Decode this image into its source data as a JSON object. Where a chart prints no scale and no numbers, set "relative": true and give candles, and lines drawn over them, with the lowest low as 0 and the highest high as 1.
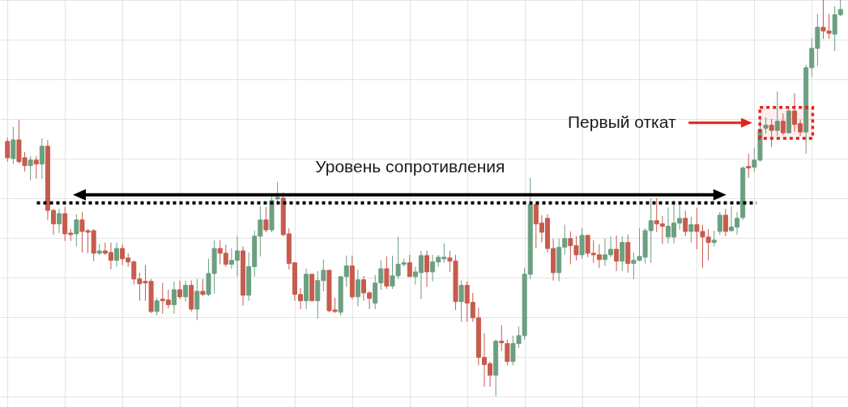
{
  "chart_data": {
    "type": "candlestick",
    "relative": true,
    "grid": true,
    "categories": [
      null,
      null,
      null,
      null,
      null,
      null,
      null,
      null,
      null,
      null,
      null,
      null,
      null,
      null,
      null,
      null,
      null,
      null,
      null,
      null,
      null,
      null,
      null,
      null,
      null,
      null,
      null,
      null,
      null,
      null,
      null,
      null,
      null,
      null,
      null,
      null,
      null,
      null,
      null,
      null,
      null,
      null,
      null,
      null,
      null,
      null,
      null,
      null,
      null,
      null,
      null,
      null,
      null,
      null,
      null,
      null,
      null,
      null,
      null,
      null,
      null,
      null,
      null,
      null,
      null,
      null,
      null,
      null,
      null,
      null,
      null,
      null,
      null,
      null,
      null,
      null,
      null,
      null,
      null,
      null,
      null,
      null,
      null,
      null,
      null,
      null,
      null,
      null,
      null,
      null,
      null,
      null,
      null,
      null,
      null,
      null,
      null,
      null,
      null,
      null,
      null,
      null,
      null,
      null,
      null,
      null,
      null,
      null,
      null,
      null,
      null,
      null,
      null,
      null,
      null,
      null,
      null,
      null,
      null,
      null,
      null,
      null,
      null,
      null,
      null,
      null,
      null,
      null,
      null,
      null,
      null,
      null,
      null,
      null,
      null,
      null,
      null,
      null,
      null,
      null,
      null,
      null,
      null,
      null,
      null,
      null
    ],
    "ohlc": [
      [
        0.643,
        0.653,
        0.592,
        0.602
      ],
      [
        0.6,
        0.68,
        0.586,
        0.647
      ],
      [
        0.647,
        0.698,
        0.588,
        0.592
      ],
      [
        0.602,
        0.616,
        0.567,
        0.582
      ],
      [
        0.582,
        0.606,
        0.545,
        0.596
      ],
      [
        0.596,
        0.606,
        0.549,
        0.586
      ],
      [
        0.586,
        0.651,
        0.549,
        0.631
      ],
      [
        0.631,
        0.647,
        0.445,
        0.469
      ],
      [
        0.469,
        0.473,
        0.408,
        0.435
      ],
      [
        0.435,
        0.473,
        0.412,
        0.461
      ],
      [
        0.461,
        0.478,
        0.392,
        0.41
      ],
      [
        0.412,
        0.422,
        0.392,
        0.408
      ],
      [
        0.41,
        0.459,
        0.378,
        0.445
      ],
      [
        0.445,
        0.465,
        0.363,
        0.416
      ],
      [
        0.418,
        0.422,
        0.361,
        0.414
      ],
      [
        0.418,
        0.422,
        0.341,
        0.361
      ],
      [
        0.361,
        0.384,
        0.357,
        0.367
      ],
      [
        0.367,
        0.388,
        0.357,
        0.361
      ],
      [
        0.363,
        0.388,
        0.32,
        0.343
      ],
      [
        0.343,
        0.388,
        0.327,
        0.373
      ],
      [
        0.373,
        0.384,
        0.331,
        0.347
      ],
      [
        0.349,
        0.361,
        0.327,
        0.339
      ],
      [
        0.339,
        0.343,
        0.282,
        0.296
      ],
      [
        0.296,
        0.312,
        0.241,
        0.284
      ],
      [
        0.29,
        0.331,
        0.241,
        0.286
      ],
      [
        0.29,
        0.296,
        0.21,
        0.214
      ],
      [
        0.214,
        0.249,
        0.204,
        0.241
      ],
      [
        0.245,
        0.286,
        0.208,
        0.241
      ],
      [
        0.243,
        0.269,
        0.222,
        0.231
      ],
      [
        0.231,
        0.29,
        0.208,
        0.269
      ],
      [
        0.269,
        0.292,
        0.245,
        0.251
      ],
      [
        0.251,
        0.292,
        0.239,
        0.28
      ],
      [
        0.28,
        0.292,
        0.214,
        0.22
      ],
      [
        0.22,
        0.296,
        0.192,
        0.265
      ],
      [
        0.265,
        0.296,
        0.253,
        0.257
      ],
      [
        0.257,
        0.347,
        0.253,
        0.31
      ],
      [
        0.31,
        0.394,
        0.259,
        0.373
      ],
      [
        0.373,
        0.394,
        0.333,
        0.361
      ],
      [
        0.361,
        0.382,
        0.327,
        0.333
      ],
      [
        0.333,
        0.373,
        0.322,
        0.343
      ],
      [
        0.343,
        0.404,
        0.302,
        0.367
      ],
      [
        0.367,
        0.378,
        0.229,
        0.255
      ],
      [
        0.255,
        0.363,
        0.241,
        0.327
      ],
      [
        0.327,
        0.418,
        0.302,
        0.404
      ],
      [
        0.404,
        0.48,
        0.353,
        0.445
      ],
      [
        0.445,
        0.478,
        0.414,
        0.42
      ],
      [
        0.42,
        0.51,
        0.414,
        0.494
      ],
      [
        0.498,
        0.541,
        0.49,
        0.502
      ],
      [
        0.5,
        0.514,
        0.404,
        0.408
      ],
      [
        0.41,
        0.424,
        0.32,
        0.335
      ],
      [
        0.337,
        0.337,
        0.241,
        0.257
      ],
      [
        0.257,
        0.273,
        0.22,
        0.241
      ],
      [
        0.241,
        0.322,
        0.22,
        0.308
      ],
      [
        0.308,
        0.308,
        0.241,
        0.241
      ],
      [
        0.241,
        0.316,
        0.196,
        0.292
      ],
      [
        0.292,
        0.345,
        0.265,
        0.318
      ],
      [
        0.318,
        0.318,
        0.212,
        0.216
      ],
      [
        0.218,
        0.249,
        0.21,
        0.214
      ],
      [
        0.212,
        0.302,
        0.204,
        0.302
      ],
      [
        0.302,
        0.355,
        0.276,
        0.329
      ],
      [
        0.329,
        0.355,
        0.245,
        0.251
      ],
      [
        0.251,
        0.32,
        0.227,
        0.294
      ],
      [
        0.294,
        0.304,
        0.241,
        0.261
      ],
      [
        0.261,
        0.265,
        0.22,
        0.247
      ],
      [
        0.235,
        0.306,
        0.22,
        0.286
      ],
      [
        0.286,
        0.343,
        0.269,
        0.322
      ],
      [
        0.322,
        0.353,
        0.271,
        0.278
      ],
      [
        0.278,
        0.355,
        0.271,
        0.304
      ],
      [
        0.304,
        0.402,
        0.296,
        0.333
      ],
      [
        0.333,
        0.347,
        0.327,
        0.337
      ],
      [
        0.337,
        0.357,
        0.302,
        0.302
      ],
      [
        0.302,
        0.327,
        0.282,
        0.314
      ],
      [
        0.312,
        0.367,
        0.245,
        0.355
      ],
      [
        0.355,
        0.367,
        0.276,
        0.314
      ],
      [
        0.314,
        0.357,
        0.29,
        0.339
      ],
      [
        0.339,
        0.357,
        0.327,
        0.351
      ],
      [
        0.347,
        0.386,
        0.337,
        0.351
      ],
      [
        0.349,
        0.367,
        0.314,
        0.341
      ],
      [
        0.341,
        0.357,
        0.218,
        0.239
      ],
      [
        0.239,
        0.292,
        0.188,
        0.28
      ],
      [
        0.28,
        0.29,
        0.188,
        0.235
      ],
      [
        0.237,
        0.261,
        0.188,
        0.198
      ],
      [
        0.198,
        0.224,
        0.078,
        0.098
      ],
      [
        0.098,
        0.159,
        0.024,
        0.08
      ],
      [
        0.082,
        0.088,
        0.024,
        0.053
      ],
      [
        0.053,
        0.143,
        0,
        0.139
      ],
      [
        0.139,
        0.18,
        0.114,
        0.135
      ],
      [
        0.133,
        0.143,
        0.078,
        0.088
      ],
      [
        0.088,
        0.153,
        0.078,
        0.133
      ],
      [
        0.133,
        0.176,
        0.122,
        0.153
      ],
      [
        0.153,
        0.324,
        0.143,
        0.308
      ],
      [
        0.308,
        0.551,
        0.296,
        0.484
      ],
      [
        0.484,
        0.49,
        0.373,
        0.435
      ],
      [
        0.437,
        0.457,
        0.388,
        0.414
      ],
      [
        0.449,
        0.459,
        0.363,
        0.373
      ],
      [
        0.373,
        0.398,
        0.292,
        0.312
      ],
      [
        0.312,
        0.398,
        0.29,
        0.376
      ],
      [
        0.376,
        0.433,
        0.357,
        0.398
      ],
      [
        0.398,
        0.416,
        0.333,
        0.38
      ],
      [
        0.38,
        0.404,
        0.343,
        0.357
      ],
      [
        0.357,
        0.424,
        0.347,
        0.406
      ],
      [
        0.406,
        0.406,
        0.351,
        0.361
      ],
      [
        0.361,
        0.394,
        0.337,
        0.357
      ],
      [
        0.357,
        0.384,
        0.324,
        0.345
      ],
      [
        0.345,
        0.398,
        0.329,
        0.357
      ],
      [
        0.357,
        0.404,
        0.351,
        0.371
      ],
      [
        0.371,
        0.406,
        0.316,
        0.341
      ],
      [
        0.341,
        0.404,
        0.316,
        0.388
      ],
      [
        0.388,
        0.408,
        0.312,
        0.335
      ],
      [
        0.335,
        0.363,
        0.296,
        0.343
      ],
      [
        0.343,
        0.424,
        0.341,
        0.353
      ],
      [
        0.351,
        0.424,
        0.335,
        0.418
      ],
      [
        0.418,
        0.5,
        0.337,
        0.443
      ],
      [
        0.443,
        0.5,
        0.414,
        0.435
      ],
      [
        0.435,
        0.455,
        0.384,
        0.429
      ],
      [
        0.402,
        0.476,
        0.386,
        0.429
      ],
      [
        0.402,
        0.494,
        0.386,
        0.437
      ],
      [
        0.437,
        0.484,
        0.42,
        0.449
      ],
      [
        0.449,
        0.469,
        0.404,
        0.416
      ],
      [
        0.416,
        0.453,
        0.388,
        0.433
      ],
      [
        0.433,
        0.476,
        0.371,
        0.416
      ],
      [
        0.416,
        0.433,
        0.324,
        0.402
      ],
      [
        0.402,
        0.422,
        0.343,
        0.388
      ],
      [
        0.388,
        0.418,
        0.378,
        0.394
      ],
      [
        0.416,
        0.465,
        0.408,
        0.457
      ],
      [
        0.457,
        0.473,
        0.404,
        0.416
      ],
      [
        0.418,
        0.48,
        0.416,
        0.427
      ],
      [
        0.427,
        0.465,
        0.408,
        0.449
      ],
      [
        0.451,
        0.58,
        0.445,
        0.576
      ],
      [
        0.58,
        0.612,
        0.551,
        0.576
      ],
      [
        0.578,
        0.627,
        0.567,
        0.596
      ],
      [
        0.596,
        0.704,
        0.592,
        0.673
      ],
      [
        0.676,
        0.704,
        0.663,
        0.684
      ],
      [
        0.684,
        0.7,
        0.629,
        0.671
      ],
      [
        0.671,
        0.769,
        0.657,
        0.694
      ],
      [
        0.694,
        0.714,
        0.659,
        0.665
      ],
      [
        0.665,
        0.731,
        0.663,
        0.72
      ],
      [
        0.72,
        0.765,
        0.667,
        0.686
      ],
      [
        0.688,
        0.698,
        0.657,
        0.667
      ],
      [
        0.667,
        0.837,
        0.612,
        0.829
      ],
      [
        0.829,
        0.904,
        0.806,
        0.878
      ],
      [
        0.878,
        0.965,
        0.833,
        0.931
      ],
      [
        0.931,
        1,
        0.902,
        0.922
      ],
      [
        0.922,
        0.965,
        0.902,
        0.916
      ],
      [
        0.914,
        0.984,
        0.871,
        0.963
      ],
      [
        0.963,
        1,
        0.959,
        0.976
      ]
    ],
    "colors": [
      "#c75b4c",
      "#6b9f80",
      "#c75b4c",
      "#c75b4c",
      "#6b9f80",
      "#c75b4c",
      "#6b9f80",
      "#c75b4c",
      "#c75b4c",
      "#6b9f80",
      "#c75b4c",
      "#c75b4c",
      "#6b9f80",
      "#c75b4c",
      "#c75b4c",
      "#c75b4c",
      "#6b9f80",
      "#c75b4c",
      "#c75b4c",
      "#6b9f80",
      "#c75b4c",
      "#c75b4c",
      "#c75b4c",
      "#c75b4c",
      "#c75b4c",
      "#c75b4c",
      "#6b9f80",
      "#c75b4c",
      "#c75b4c",
      "#6b9f80",
      "#c75b4c",
      "#6b9f80",
      "#c75b4c",
      "#6b9f80",
      "#c75b4c",
      "#6b9f80",
      "#6b9f80",
      "#c75b4c",
      "#c75b4c",
      "#6b9f80",
      "#6b9f80",
      "#c75b4c",
      "#6b9f80",
      "#6b9f80",
      "#6b9f80",
      "#c75b4c",
      "#6b9f80",
      "#6b9f80",
      "#c75b4c",
      "#c75b4c",
      "#c75b4c",
      "#c75b4c",
      "#6b9f80",
      "#c75b4c",
      "#6b9f80",
      "#6b9f80",
      "#c75b4c",
      "#c75b4c",
      "#6b9f80",
      "#6b9f80",
      "#c75b4c",
      "#6b9f80",
      "#c75b4c",
      "#c75b4c",
      "#6b9f80",
      "#6b9f80",
      "#c75b4c",
      "#6b9f80",
      "#6b9f80",
      "#6b9f80",
      "#c75b4c",
      "#6b9f80",
      "#6b9f80",
      "#c75b4c",
      "#6b9f80",
      "#6b9f80",
      "#6b9f80",
      "#c75b4c",
      "#c75b4c",
      "#6b9f80",
      "#c75b4c",
      "#c75b4c",
      "#c75b4c",
      "#c75b4c",
      "#c75b4c",
      "#6b9f80",
      "#c75b4c",
      "#c75b4c",
      "#6b9f80",
      "#6b9f80",
      "#6b9f80",
      "#6b9f80",
      "#c75b4c",
      "#c75b4c",
      "#c75b4c",
      "#c75b4c",
      "#6b9f80",
      "#6b9f80",
      "#c75b4c",
      "#c75b4c",
      "#6b9f80",
      "#c75b4c",
      "#c75b4c",
      "#c75b4c",
      "#6b9f80",
      "#6b9f80",
      "#c75b4c",
      "#6b9f80",
      "#c75b4c",
      "#6b9f80",
      "#6b9f80",
      "#6b9f80",
      "#6b9f80",
      "#c75b4c",
      "#c75b4c",
      "#6b9f80",
      "#6b9f80",
      "#6b9f80",
      "#c75b4c",
      "#6b9f80",
      "#c75b4c",
      "#c75b4c",
      "#c75b4c",
      "#6b9f80",
      "#6b9f80",
      "#c75b4c",
      "#6b9f80",
      "#6b9f80",
      "#6b9f80",
      "#c75b4c",
      "#6b9f80",
      "#6b9f80",
      "#6b9f80",
      "#c75b4c",
      "#6b9f80",
      "#c75b4c",
      "#6b9f80",
      "#c75b4c",
      "#c75b4c",
      "#6b9f80",
      "#6b9f80",
      "#6b9f80",
      "#c75b4c",
      "#c75b4c",
      "#6b9f80",
      "#6b9f80"
    ],
    "ref_lines": [
      {
        "axis": "y",
        "value": 0.488,
        "label": "Уровень сопротивления",
        "color": "#000000",
        "line_style": "dotted"
      }
    ],
    "bands": [
      {
        "axis": "y",
        "from": 0.651,
        "to": 0.729,
        "color": "#e0231b"
      }
    ],
    "annotations": [
      "Первый откат"
    ]
  }
}
